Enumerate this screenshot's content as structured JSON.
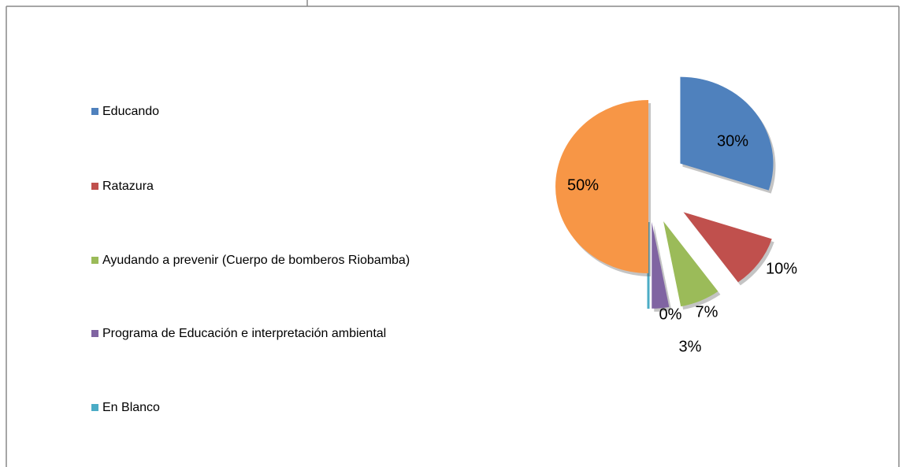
{
  "chart_data": {
    "type": "pie",
    "categories": [
      "Educando",
      "Ratazura",
      "Ayudando a prevenir (Cuerpo de bomberos Riobamba)",
      "Programa de Educación  e interpretación ambiental",
      "En Blanco",
      null
    ],
    "values": [
      30,
      10,
      7,
      3,
      0,
      50
    ],
    "value_labels": [
      "30%",
      "10%",
      "7%",
      "3%",
      "0%",
      "50%"
    ],
    "colors": [
      "#4f81bd",
      "#c0504d",
      "#9bbb59",
      "#8064a2",
      "#4bacc6",
      "#f79646"
    ],
    "legend": "left"
  }
}
